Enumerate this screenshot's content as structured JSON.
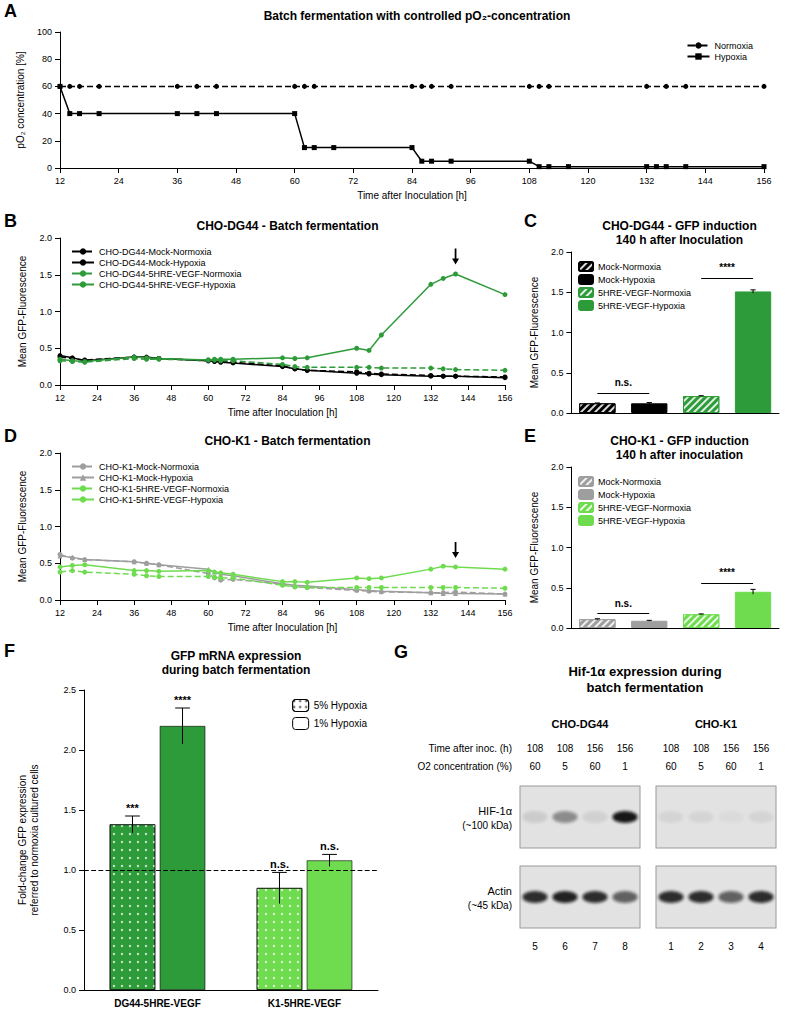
{
  "chart_data": [
    {
      "panel": "A",
      "type": "line",
      "title": "Batch fermentation with controlled pO₂-concentration",
      "x_label": "Time after Inoculation [h]",
      "y_label": "pO₂ concentration [%]",
      "xlim": [
        12,
        156
      ],
      "xticks": [
        12,
        24,
        36,
        48,
        60,
        72,
        84,
        96,
        108,
        120,
        132,
        144,
        156
      ],
      "ylim": [
        0,
        100
      ],
      "yticks": [
        0,
        20,
        40,
        60,
        80,
        100
      ],
      "grid": false,
      "legend": "top-right",
      "series": [
        {
          "name": "Normoxia",
          "color": "#000000",
          "line_style": "dashed",
          "marker": "circle",
          "x": [
            12,
            14,
            16,
            20,
            36,
            40,
            44,
            60,
            62,
            64,
            84,
            86,
            88,
            92,
            108,
            110,
            112,
            132,
            136,
            140,
            156
          ],
          "values": [
            60,
            60,
            60,
            60,
            60,
            60,
            60,
            60,
            60,
            60,
            60,
            60,
            60,
            60,
            60,
            60,
            60,
            60,
            60,
            60,
            60
          ]
        },
        {
          "name": "Hypoxia",
          "color": "#000000",
          "line_style": "solid",
          "marker": "square",
          "x": [
            12,
            14,
            16,
            20,
            36,
            40,
            44,
            60,
            62,
            64,
            68,
            84,
            86,
            88,
            92,
            108,
            110,
            112,
            116,
            132,
            134,
            136,
            140,
            156
          ],
          "values": [
            60,
            40,
            40,
            40,
            40,
            40,
            40,
            40,
            15,
            15,
            15,
            15,
            5,
            5,
            5,
            5,
            1,
            1,
            1,
            1,
            1,
            1,
            1,
            1
          ]
        }
      ]
    },
    {
      "panel": "B",
      "type": "line",
      "title": "CHO-DG44 - Batch fermentation",
      "x_label": "Time after Inoculation [h]",
      "y_label": "Mean GFP-Fluorescence",
      "xlim": [
        12,
        156
      ],
      "xticks": [
        12,
        24,
        36,
        48,
        60,
        72,
        84,
        96,
        108,
        120,
        132,
        144,
        156
      ],
      "ylim": [
        0,
        2
      ],
      "yticks": [
        {
          "value": 0,
          "label": "0.0"
        },
        0.5,
        {
          "value": 1,
          "label": "1.0"
        },
        1.5,
        {
          "value": 2,
          "label": "2.0"
        }
      ],
      "grid": false,
      "legend": "top-left",
      "arrow": {
        "x": 140,
        "y": 1.75
      },
      "x": [
        12,
        16,
        20,
        36,
        40,
        44,
        60,
        62,
        64,
        68,
        84,
        88,
        92,
        108,
        112,
        116,
        132,
        136,
        140,
        156
      ],
      "series": [
        {
          "name": "CHO-DG44-Mock-Normoxia",
          "color": "#000000",
          "line_style": "dashed",
          "marker": "circle",
          "values": [
            0.38,
            0.36,
            0.34,
            0.38,
            0.37,
            0.36,
            0.33,
            0.33,
            0.32,
            0.31,
            0.26,
            0.22,
            0.2,
            0.18,
            0.16,
            0.15,
            0.13,
            0.12,
            0.12,
            0.11
          ]
        },
        {
          "name": "CHO-DG44-Mock-Hypoxia",
          "color": "#000000",
          "line_style": "solid",
          "marker": "circle",
          "values": [
            0.4,
            0.37,
            0.33,
            0.38,
            0.38,
            0.36,
            0.33,
            0.32,
            0.31,
            0.3,
            0.25,
            0.22,
            0.2,
            0.16,
            0.15,
            0.14,
            0.12,
            0.12,
            0.12,
            0.1
          ]
        },
        {
          "name": "CHO-DG44-5HRE-VEGF-Normoxia",
          "color": "#2e9b3a",
          "line_style": "dashed",
          "marker": "circle",
          "values": [
            0.33,
            0.32,
            0.31,
            0.36,
            0.35,
            0.35,
            0.34,
            0.34,
            0.33,
            0.33,
            0.28,
            0.25,
            0.24,
            0.24,
            0.24,
            0.23,
            0.23,
            0.22,
            0.21,
            0.2
          ]
        },
        {
          "name": "CHO-DG44-5HRE-VEGF-Hypoxia",
          "color": "#2e9b3a",
          "line_style": "solid",
          "marker": "circle",
          "values": [
            0.35,
            0.33,
            0.32,
            0.38,
            0.37,
            0.36,
            0.34,
            0.35,
            0.35,
            0.35,
            0.37,
            0.36,
            0.37,
            0.5,
            0.47,
            0.68,
            1.37,
            1.45,
            1.51,
            1.23
          ]
        }
      ]
    },
    {
      "panel": "C",
      "type": "bar",
      "title": "CHO-DG44 - GFP induction\n140 h after Inoculation",
      "y_label": "Mean GFP-Fluorescence",
      "ylim": [
        0,
        2
      ],
      "yticks": [
        {
          "value": 0,
          "label": "0.0"
        },
        0.5,
        {
          "value": 1,
          "label": "1.0"
        },
        1.5,
        {
          "value": 2,
          "label": "2.0"
        }
      ],
      "grid": false,
      "legend": "top-left",
      "tick_labels": "y",
      "categories": [
        null,
        null,
        null,
        null
      ],
      "series": [
        {
          "name": "Mock-Normoxia",
          "color": "#000000",
          "values": [
            0.12,
            null,
            null,
            null
          ],
          "errors": [
            0.005,
            null,
            null,
            null
          ]
        },
        {
          "name": "Mock-Hypoxia",
          "color": "#000000",
          "values": [
            null,
            0.12,
            null,
            null
          ],
          "errors": [
            null,
            0.01,
            null,
            null
          ]
        },
        {
          "name": "5HRE-VEGF-Normoxia",
          "color": "#2e9b3a",
          "values": [
            null,
            null,
            0.21,
            null
          ],
          "errors": [
            null,
            null,
            0.005,
            null
          ]
        },
        {
          "name": "5HRE-VEGF-Hypoxia",
          "color": "#2e9b3a",
          "values": [
            null,
            null,
            null,
            1.51
          ],
          "errors": [
            null,
            null,
            null,
            0.02
          ]
        }
      ],
      "annotations": [
        {
          "text": "n.s.",
          "from": 0,
          "to": 1,
          "y": 0.25
        },
        {
          "text": "****",
          "from": 2,
          "to": 3,
          "y": 1.68
        }
      ]
    },
    {
      "panel": "D",
      "type": "line",
      "title": "CHO-K1 - Batch fermentation",
      "x_label": "Time after Inoculation [h]",
      "y_label": "Mean GFP-Fluorescence",
      "xlim": [
        12,
        156
      ],
      "xticks": [
        12,
        24,
        36,
        48,
        60,
        72,
        84,
        96,
        108,
        120,
        132,
        144,
        156
      ],
      "ylim": [
        0,
        2
      ],
      "yticks": [
        {
          "value": 0,
          "label": "0.0"
        },
        0.5,
        {
          "value": 1,
          "label": "1.0"
        },
        1.5,
        {
          "value": 2,
          "label": "2.0"
        }
      ],
      "grid": false,
      "legend": "top-left",
      "arrow": {
        "x": 140,
        "y": 0.68
      },
      "x": [
        12,
        16,
        20,
        36,
        40,
        44,
        60,
        62,
        64,
        68,
        84,
        88,
        92,
        108,
        112,
        116,
        132,
        136,
        140,
        156
      ],
      "series": [
        {
          "name": "CHO-K1-Mock-Normoxia",
          "color": "#9e9e9e",
          "line_style": "dashed",
          "marker": "circle",
          "values": [
            0.62,
            0.57,
            0.55,
            0.52,
            0.5,
            0.48,
            0.36,
            0.3,
            0.27,
            0.28,
            0.22,
            0.18,
            0.17,
            0.13,
            0.12,
            0.11,
            0.1,
            0.1,
            0.11,
            0.08
          ]
        },
        {
          "name": "CHO-K1-Mock-Hypoxia",
          "color": "#9e9e9e",
          "line_style": "solid",
          "marker": "triangle",
          "values": [
            0.6,
            0.58,
            0.55,
            0.52,
            0.5,
            0.48,
            0.42,
            0.38,
            0.35,
            0.33,
            0.22,
            0.2,
            0.19,
            0.14,
            0.13,
            0.12,
            0.1,
            0.09,
            0.09,
            0.08
          ]
        },
        {
          "name": "CHO-K1-5HRE-VEGF-Normoxia",
          "color": "#6fdc4f",
          "line_style": "dashed",
          "marker": "circle",
          "values": [
            0.38,
            0.4,
            0.38,
            0.35,
            0.33,
            0.32,
            0.32,
            0.31,
            0.3,
            0.3,
            0.2,
            0.18,
            0.17,
            0.17,
            0.17,
            0.17,
            0.17,
            0.17,
            0.17,
            0.16
          ]
        },
        {
          "name": "CHO-K1-5HRE-VEGF-Hypoxia",
          "color": "#6fdc4f",
          "line_style": "solid",
          "marker": "circle",
          "values": [
            0.45,
            0.47,
            0.48,
            0.4,
            0.4,
            0.39,
            0.4,
            0.38,
            0.37,
            0.35,
            0.25,
            0.25,
            0.24,
            0.3,
            0.29,
            0.3,
            0.42,
            0.46,
            0.45,
            0.42
          ]
        }
      ]
    },
    {
      "panel": "E",
      "type": "bar",
      "title": "CHO-K1 - GFP induction\n140 h after inoculation",
      "y_label": "Mean GFP-Fluorescence",
      "ylim": [
        0,
        2
      ],
      "yticks": [
        {
          "value": 0,
          "label": "0.0"
        },
        0.5,
        {
          "value": 1,
          "label": "1.0"
        },
        1.5,
        {
          "value": 2,
          "label": "2.0"
        }
      ],
      "grid": false,
      "legend": "top-left",
      "tick_labels": "y",
      "categories": [
        null,
        null,
        null,
        null
      ],
      "series": [
        {
          "name": "Mock-Normoxia",
          "color": "#9e9e9e",
          "values": [
            0.11,
            null,
            null,
            null
          ],
          "errors": [
            0.005,
            null,
            null,
            null
          ]
        },
        {
          "name": "Mock-Hypoxia",
          "color": "#9e9e9e",
          "values": [
            null,
            0.09,
            null,
            null
          ],
          "errors": [
            null,
            0.005,
            null,
            null
          ]
        },
        {
          "name": "5HRE-VEGF-Normoxia",
          "color": "#6fdc4f",
          "values": [
            null,
            null,
            0.17,
            null
          ],
          "errors": [
            null,
            null,
            0.005,
            null
          ]
        },
        {
          "name": "5HRE-VEGF-Hypoxia",
          "color": "#6fdc4f",
          "values": [
            null,
            null,
            null,
            0.45
          ],
          "errors": [
            null,
            null,
            null,
            0.03
          ]
        }
      ],
      "annotations": [
        {
          "text": "n.s.",
          "from": 0,
          "to": 1,
          "y": 0.18
        },
        {
          "text": "****",
          "from": 2,
          "to": 3,
          "y": 0.56
        }
      ]
    },
    {
      "panel": "F",
      "type": "bar",
      "title": "GFP mRNA expression\nduring batch fermentation",
      "y_label": "Fold-change GFP expression\nreferred to normoxia cultured cells",
      "ylim": [
        0,
        2.5
      ],
      "yticks": [
        {
          "value": 0,
          "label": "0.0"
        },
        0.5,
        {
          "value": 1,
          "label": "1.0"
        },
        1.5,
        {
          "value": 2,
          "label": "2.0"
        },
        2.5
      ],
      "grid": false,
      "legend": "top-right",
      "reference_line": 1,
      "categories": [
        "DG44-5HRE-VEGF",
        "K1-5HRE-VEGF"
      ],
      "series": [
        {
          "name": "5% Hypoxia",
          "colors": [
            "#2e9b3a",
            "#6fdc4f"
          ],
          "values": [
            1.38,
            0.85
          ],
          "errors": [
            0.07,
            0.13
          ],
          "significance": [
            "***",
            "n.s."
          ]
        },
        {
          "name": "1% Hypoxia",
          "colors": [
            "#2e9b3a",
            "#6fdc4f"
          ],
          "values": [
            2.2,
            1.08
          ],
          "errors": [
            0.15,
            0.05
          ],
          "significance": [
            "****",
            "n.s."
          ]
        }
      ]
    }
  ],
  "blot": {
    "panel": "G",
    "title": [
      "Hif-1α expression during",
      "batch fermentation"
    ],
    "time_label": "Time after inoc. (h)",
    "o2_label": "O2 concentration (%)",
    "blots": [
      {
        "name": "CHO-DG44",
        "time": [
          108,
          108,
          156,
          156
        ],
        "o2": [
          60,
          5,
          60,
          1
        ],
        "lanes": [
          5,
          6,
          7,
          8
        ],
        "bands": [
          {
            "label": "HIF-1α",
            "size": "(~100 kDa)",
            "intensity": [
              0.1,
              0.4,
              0.08,
              0.95
            ]
          },
          {
            "label": "Actin",
            "size": "(~45 kDa)",
            "intensity": [
              0.85,
              0.9,
              0.85,
              0.6
            ]
          }
        ]
      },
      {
        "name": "CHO-K1",
        "time": [
          108,
          108,
          156,
          156
        ],
        "o2": [
          60,
          5,
          60,
          1
        ],
        "lanes": [
          1,
          2,
          3,
          4
        ],
        "bands": [
          {
            "label": "HIF-1α",
            "size": "(~100 kDa)",
            "intensity": [
              0.06,
              0.06,
              0.03,
              0.06
            ]
          },
          {
            "label": "Actin",
            "size": "(~45 kDa)",
            "intensity": [
              0.85,
              0.85,
              0.6,
              0.85
            ]
          }
        ]
      }
    ]
  }
}
